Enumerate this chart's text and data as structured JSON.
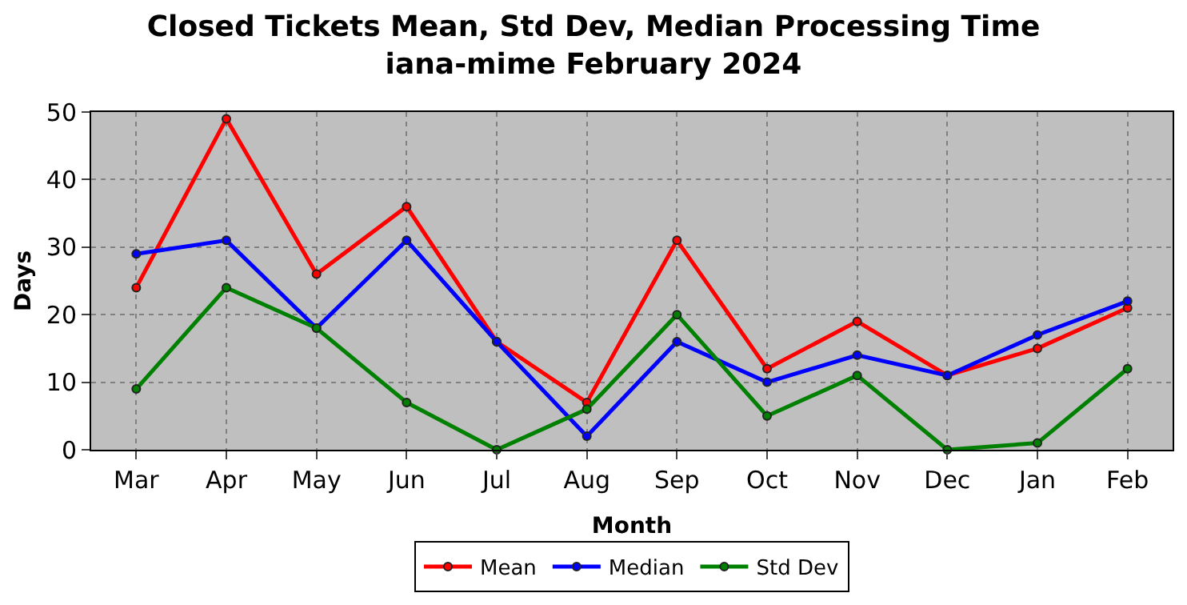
{
  "chart_data": {
    "type": "line",
    "title": "Closed Tickets Mean, Std Dev, Median Processing Time",
    "subtitle": "iana-mime February 2024",
    "xlabel": "Month",
    "ylabel": "Days",
    "categories": [
      "Mar",
      "Apr",
      "May",
      "Jun",
      "Jul",
      "Aug",
      "Sep",
      "Oct",
      "Nov",
      "Dec",
      "Jan",
      "Feb"
    ],
    "series": [
      {
        "name": "Mean",
        "color": "#ff0000",
        "values": [
          24,
          49,
          26,
          36,
          16,
          7,
          31,
          12,
          19,
          11,
          15,
          21
        ]
      },
      {
        "name": "Median",
        "color": "#0000ff",
        "values": [
          29,
          31,
          18,
          31,
          16,
          2,
          16,
          10,
          14,
          11,
          17,
          22
        ]
      },
      {
        "name": "Std Dev",
        "color": "#008000",
        "values": [
          9,
          24,
          18,
          7,
          0,
          6,
          20,
          5,
          11,
          0,
          1,
          12
        ]
      }
    ],
    "ylim": [
      0,
      50
    ],
    "yticks": [
      0,
      10,
      20,
      30,
      40,
      50
    ],
    "grid": true,
    "legend": "bottom",
    "marker": "circle",
    "line_style": "solid"
  }
}
